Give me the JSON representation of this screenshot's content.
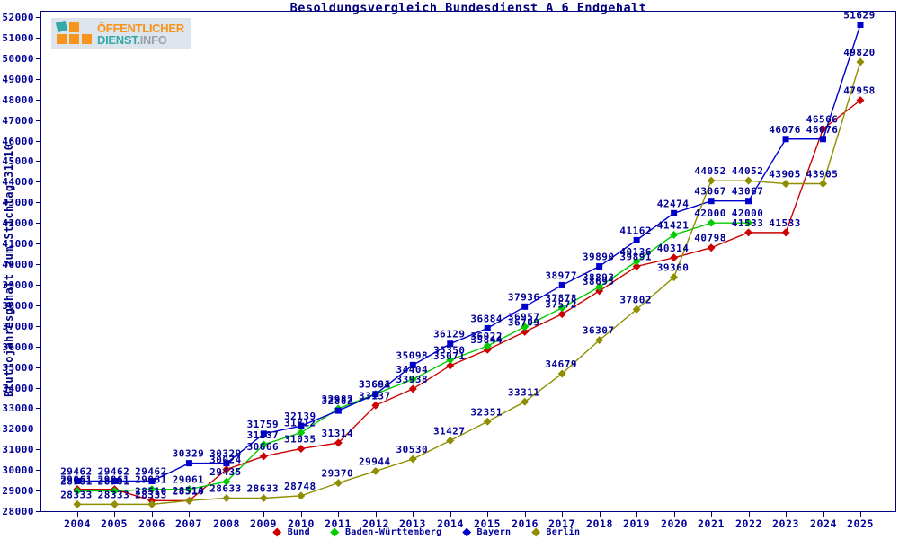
{
  "logo": {
    "line1": "ÖFFENTLICHER",
    "line2_a": "DIENST.",
    "line2_b": "INFO",
    "orange": "#f7941d",
    "teal": "#35a8a8",
    "gray": "#9aa1a8"
  },
  "axis": {
    "color": "#000080",
    "label_color": "#000099"
  },
  "chart_data": {
    "type": "line",
    "title": "Besoldungsvergleich Bundesdienst A 6 Endgehalt",
    "xlabel": "",
    "ylabel": "Bruttojahresgehalt zum Stichtag 31.10.",
    "ylim": [
      28000,
      52000
    ],
    "ytick_step": 1000,
    "grid": false,
    "legend_position": "bottom",
    "x": [
      2004,
      2005,
      2006,
      2007,
      2008,
      2009,
      2010,
      2011,
      2012,
      2013,
      2014,
      2015,
      2016,
      2017,
      2018,
      2019,
      2020,
      2021,
      2022,
      2023,
      2024,
      2025
    ],
    "series": [
      {
        "name": "Bund",
        "color": "#cc0000",
        "marker": "diamond",
        "values": [
          29061,
          29061,
          28510,
          28510,
          30024,
          30666,
          31035,
          31314,
          33137,
          33938,
          35071,
          35844,
          36709,
          37572,
          38695,
          39891,
          40314,
          40798,
          41533,
          41533,
          46566,
          47958
        ]
      },
      {
        "name": "Baden-Württemberg",
        "color": "#00cc00",
        "marker": "diamond",
        "values": [
          28981,
          28981,
          29061,
          29061,
          29435,
          31237,
          31812,
          32982,
          33691,
          34404,
          35350,
          36022,
          36957,
          37878,
          38893,
          40136,
          41421,
          42000,
          42000,
          null,
          null,
          null
        ]
      },
      {
        "name": "Bayern",
        "color": "#0000cc",
        "marker": "square",
        "values": [
          29462,
          29462,
          29462,
          30329,
          30329,
          31759,
          32139,
          32882,
          33684,
          35098,
          36129,
          36884,
          37936,
          38977,
          39890,
          41162,
          42474,
          43067,
          43067,
          46076,
          46076,
          51629
        ]
      },
      {
        "name": "Berlin",
        "color": "#8e8e00",
        "marker": "diamond",
        "values": [
          28333,
          28333,
          28333,
          28514,
          28633,
          28633,
          28748,
          29370,
          29944,
          30530,
          31427,
          32351,
          33311,
          34679,
          36307,
          37802,
          39360,
          44052,
          44052,
          43905,
          43905,
          49820
        ]
      }
    ]
  }
}
